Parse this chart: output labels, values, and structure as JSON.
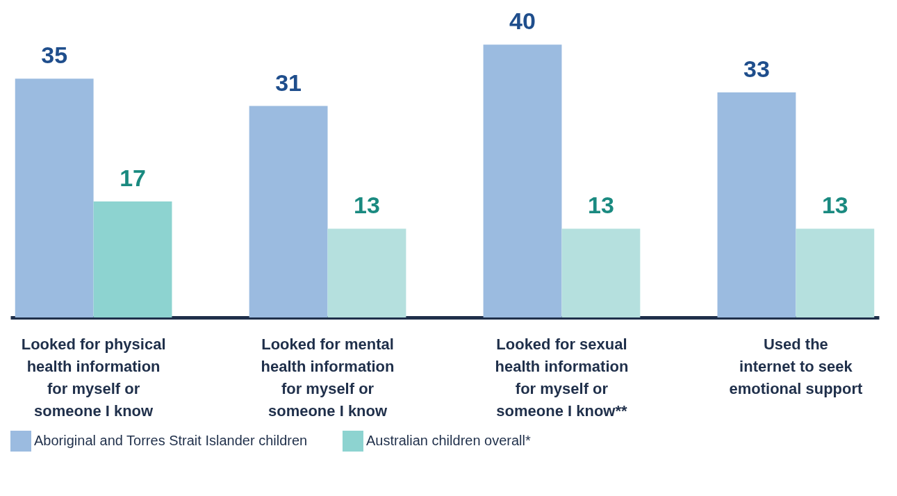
{
  "chart_data": {
    "type": "bar",
    "categories": [
      "Looked for physical\nhealth information\nfor myself or\nsomeone I know",
      "Looked for mental\nhealth information\nfor myself or\nsomeone I know",
      "Looked for sexual\nhealth information\nfor myself or\nsomeone I know**",
      "Used the\ninternet to seek\nemotional support"
    ],
    "series": [
      {
        "name": "Aboriginal and Torres Strait Islander children",
        "color": "#9bbbe0",
        "values": [
          35,
          31,
          40,
          33
        ]
      },
      {
        "name": "Australian children overall*",
        "color": "#8dd3d0",
        "colors": [
          "#8dd3d0",
          "#b5e0de",
          "#b5e0de",
          "#b5e0de"
        ],
        "values": [
          17,
          13,
          13,
          13
        ]
      }
    ],
    "data_labels": true,
    "grid": false,
    "legend": "bottom"
  }
}
